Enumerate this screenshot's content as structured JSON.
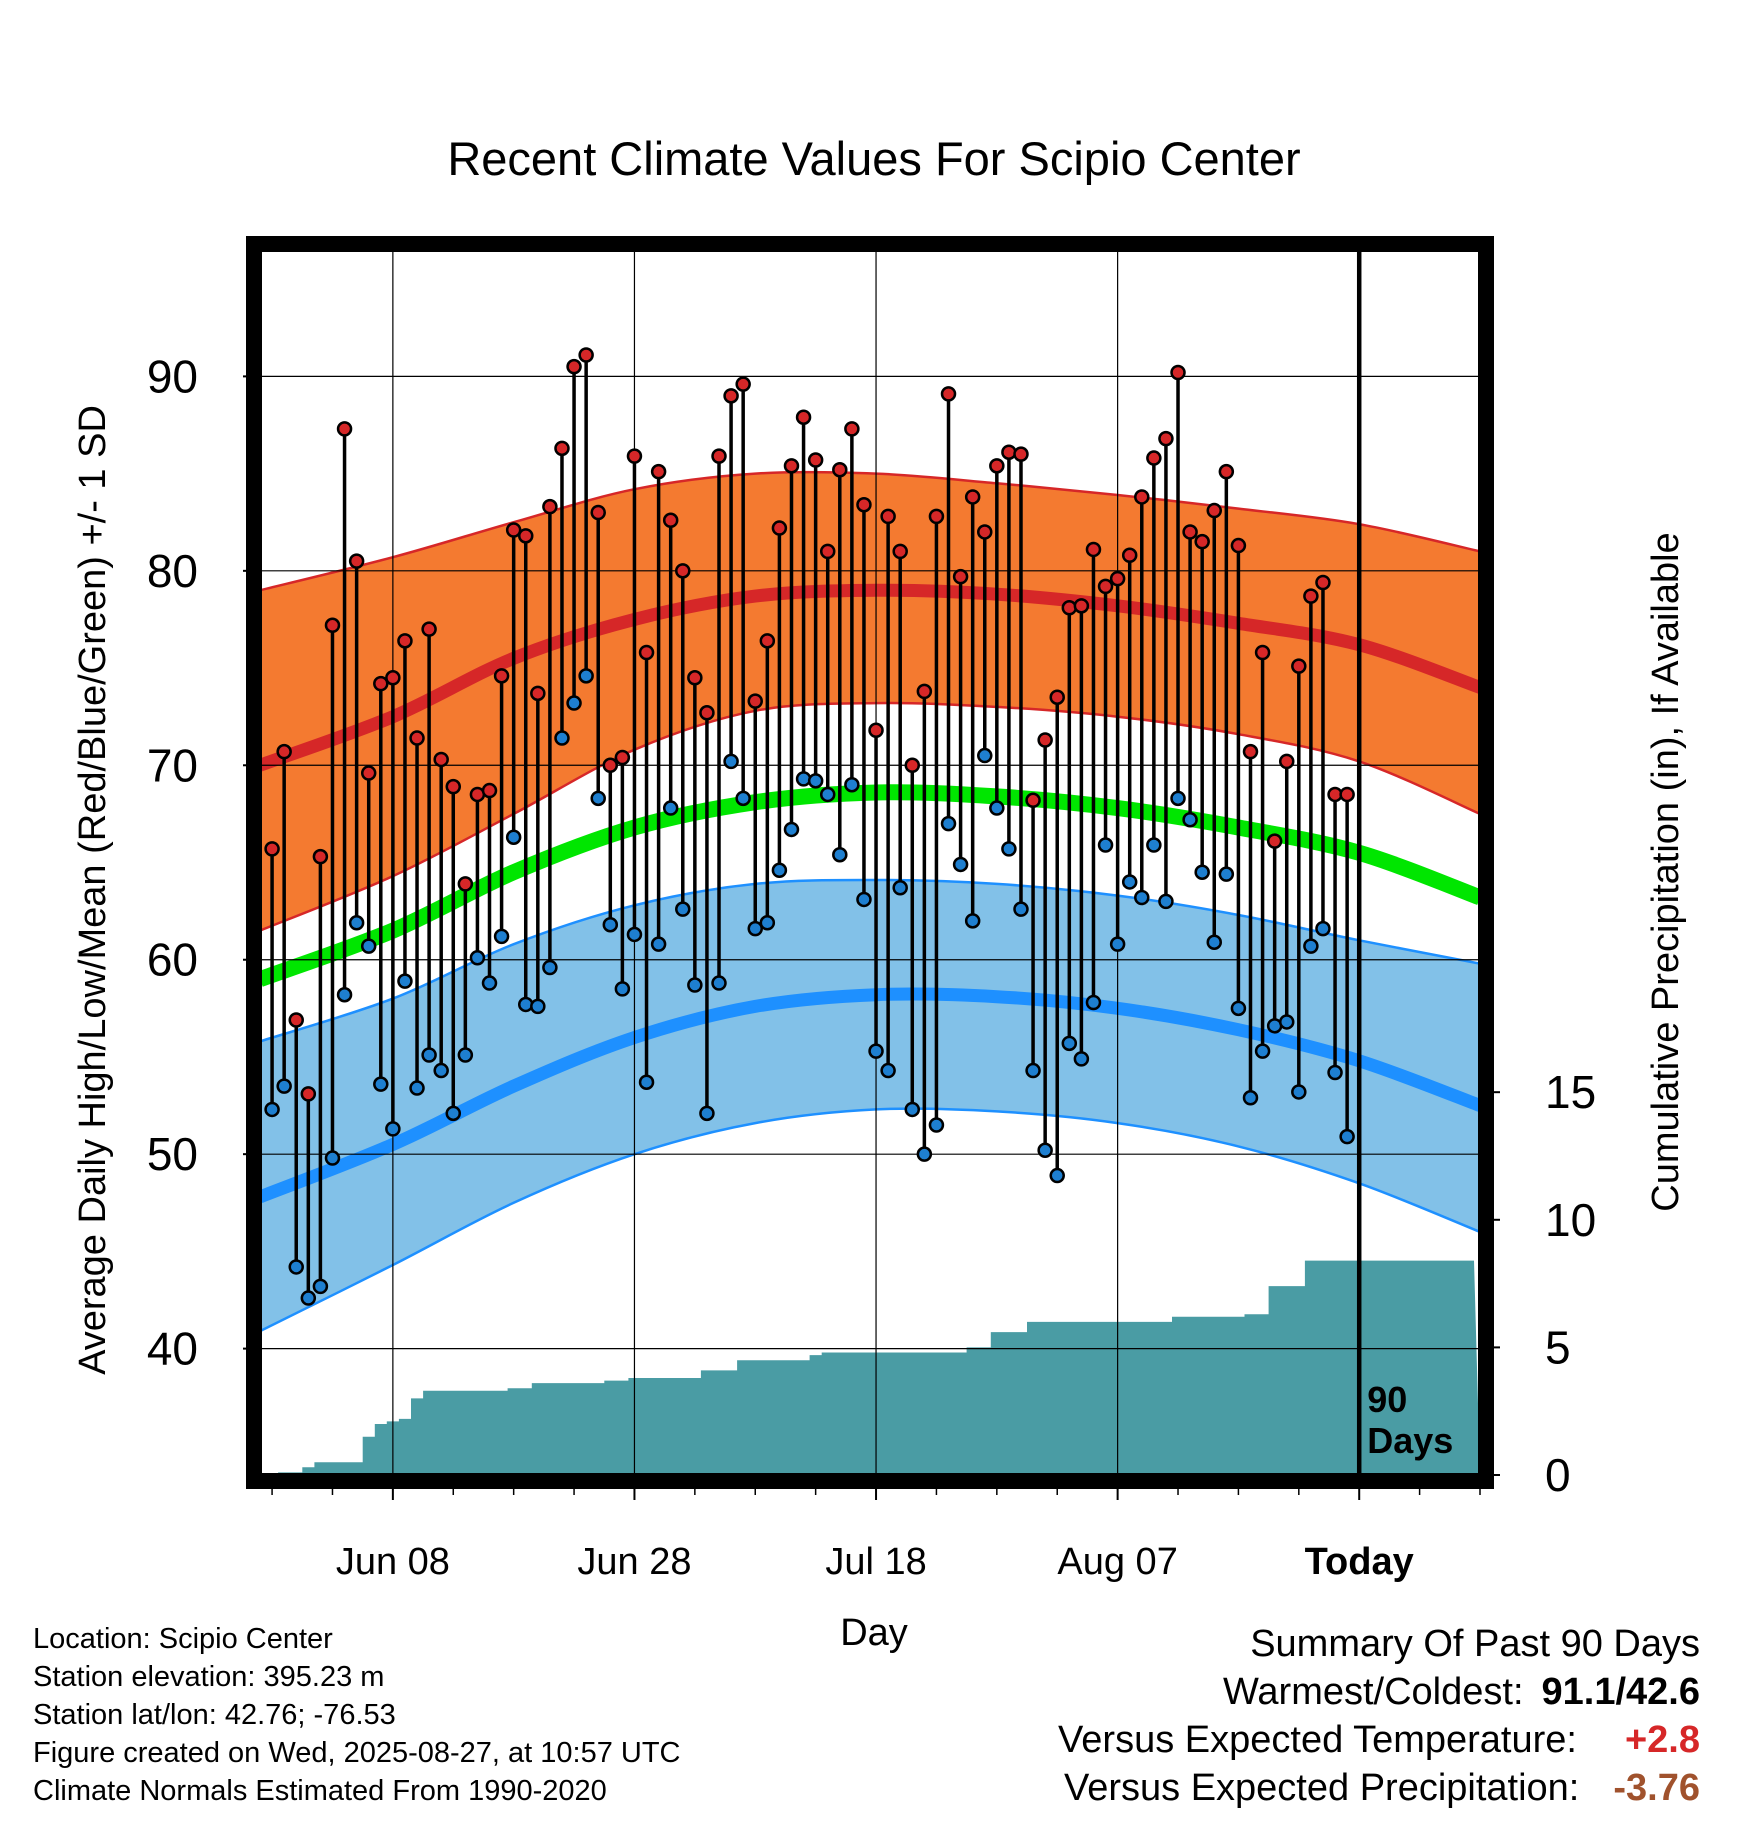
{
  "chart_data": {
    "type": "line",
    "title": "Recent Climate Values For Scipio Center",
    "xlabel": "Day",
    "ylabel": "Average Daily High/Low/Mean (Red/Blue/Green) +/- 1 SD",
    "y2label": "Cumulative Precipitation (in), If Available",
    "ylim": [
      33.5,
      96.5
    ],
    "y2lim": [
      0,
      48
    ],
    "yticks": [
      40,
      50,
      60,
      70,
      80,
      90
    ],
    "y2ticks": [
      0,
      5,
      10,
      15
    ],
    "x_tick_labels": [
      {
        "day": 10,
        "label": "Jun 08"
      },
      {
        "day": 30,
        "label": "Jun 28"
      },
      {
        "day": 50,
        "label": "Jul 18"
      },
      {
        "day": 70,
        "label": "Aug 07"
      },
      {
        "day": 90,
        "label": "Today"
      }
    ],
    "xlim": [
      -1,
      100
    ],
    "today_marker": {
      "day": 90,
      "label_line1": "90",
      "label_line2": "Days"
    },
    "grid": true,
    "normals": {
      "days": [
        -1,
        10,
        20,
        30,
        40,
        50,
        60,
        70,
        80,
        90,
        100
      ],
      "high_mean": [
        70.0,
        72.5,
        75.5,
        77.5,
        78.7,
        79.0,
        78.8,
        78.2,
        77.3,
        76.2,
        74.0
      ],
      "high_plus": [
        79.0,
        80.7,
        82.5,
        84.2,
        85.0,
        85.0,
        84.5,
        83.9,
        83.2,
        82.4,
        81.0
      ],
      "high_minus": [
        61.5,
        64.3,
        67.5,
        70.8,
        72.8,
        73.2,
        73.0,
        72.5,
        71.6,
        70.2,
        67.5
      ],
      "low_mean": [
        47.8,
        50.5,
        53.5,
        56.0,
        57.6,
        58.2,
        58.1,
        57.5,
        56.4,
        54.8,
        52.5
      ],
      "low_plus": [
        55.8,
        58.0,
        60.8,
        62.8,
        63.9,
        64.1,
        63.9,
        63.3,
        62.3,
        61.0,
        59.8
      ],
      "low_minus": [
        40.9,
        44.3,
        47.5,
        50.0,
        51.6,
        52.3,
        52.2,
        51.6,
        50.4,
        48.5,
        46.0
      ],
      "mean": [
        59.0,
        61.5,
        64.5,
        66.8,
        68.1,
        68.6,
        68.4,
        67.8,
        66.8,
        65.5,
        63.2
      ]
    },
    "series": [
      {
        "name": "High",
        "values": [
          65.7,
          70.7,
          56.9,
          53.1,
          65.3,
          77.2,
          87.3,
          80.5,
          69.6,
          74.2,
          74.5,
          76.4,
          71.4,
          77.0,
          70.3,
          68.9,
          63.9,
          68.5,
          68.7,
          74.6,
          82.1,
          81.8,
          73.7,
          83.3,
          86.3,
          90.5,
          91.1,
          83.0,
          70.0,
          70.4,
          85.9,
          75.8,
          85.1,
          82.6,
          80.0,
          74.5,
          72.7,
          85.9,
          89.0,
          89.6,
          73.3,
          76.4,
          82.2,
          85.4,
          87.9,
          85.7,
          81.0,
          85.2,
          87.3,
          83.4,
          71.8,
          82.8,
          81.0,
          70.0,
          73.8,
          82.8,
          89.1,
          79.7,
          83.8,
          82.0,
          85.4,
          86.1,
          86.0,
          68.2,
          71.3,
          73.5,
          78.1,
          78.2,
          81.1,
          79.2,
          79.6,
          80.8,
          83.8,
          85.8,
          86.8,
          90.2,
          82.0,
          81.5,
          83.1,
          85.1,
          81.3,
          70.7,
          75.8,
          66.1,
          70.2,
          75.1,
          78.7,
          79.4,
          68.5,
          68.5
        ]
      },
      {
        "name": "Low",
        "values": [
          52.3,
          53.5,
          44.2,
          42.6,
          43.2,
          49.8,
          58.2,
          61.9,
          60.7,
          53.6,
          51.3,
          58.9,
          53.4,
          55.1,
          54.3,
          52.1,
          55.1,
          60.1,
          58.8,
          61.2,
          66.3,
          57.7,
          57.6,
          59.6,
          71.4,
          73.2,
          74.6,
          68.3,
          61.8,
          58.5,
          61.3,
          53.7,
          60.8,
          67.8,
          62.6,
          58.7,
          52.1,
          58.8,
          70.2,
          68.3,
          61.6,
          61.9,
          64.6,
          66.7,
          69.3,
          69.2,
          68.5,
          65.4,
          69.0,
          63.1,
          55.3,
          54.3,
          63.7,
          52.3,
          50.0,
          51.5,
          67.0,
          64.9,
          62.0,
          70.5,
          67.8,
          65.7,
          62.6,
          54.3,
          50.2,
          48.9,
          55.7,
          54.9,
          57.8,
          65.9,
          60.8,
          64.0,
          63.2,
          65.9,
          63.0,
          68.3,
          67.2,
          64.5,
          60.9,
          64.4,
          57.5,
          52.9,
          55.3,
          56.6,
          56.8,
          53.2,
          60.7,
          61.6,
          54.2,
          50.9
        ]
      },
      {
        "name": "Precipitation",
        "days": [
          1,
          2,
          3,
          4,
          5,
          6,
          7,
          8,
          9,
          10,
          11,
          12,
          13,
          14,
          15,
          20,
          21,
          22,
          23,
          28,
          29,
          30,
          35,
          36,
          38,
          39,
          40,
          45,
          46,
          47,
          55,
          57,
          58,
          60,
          61,
          62,
          63,
          64,
          65,
          66,
          70,
          74,
          75,
          76,
          80,
          81,
          82,
          83,
          84,
          85,
          86,
          87,
          88,
          95
        ],
        "values": [
          0.1,
          0.1,
          0.3,
          0.5,
          0.5,
          0.5,
          0.5,
          1.5,
          2.0,
          2.1,
          2.2,
          3.0,
          3.3,
          3.3,
          3.3,
          3.4,
          3.4,
          3.6,
          3.6,
          3.7,
          3.7,
          3.8,
          3.8,
          4.1,
          4.1,
          4.5,
          4.5,
          4.7,
          4.8,
          4.8,
          4.8,
          4.8,
          5.0,
          5.6,
          5.6,
          5.6,
          6.0,
          6.0,
          6.0,
          6.0,
          6.0,
          6.0,
          6.2,
          6.2,
          6.2,
          6.3,
          6.3,
          7.4,
          7.4,
          7.4,
          8.4,
          8.4,
          8.4,
          8.4
        ]
      }
    ]
  },
  "info": {
    "location": "Location: Scipio Center",
    "elevation": "Station elevation: 395.23 m",
    "latlon": "Station lat/lon: 42.76; -76.53",
    "created": "Figure created on Wed, 2025-08-27, at 10:57 UTC",
    "normals": "Climate Normals Estimated From 1990-2020"
  },
  "summary": {
    "title": "Summary Of Past 90 Days",
    "warmest_label": "Warmest/Coldest:",
    "warmest_value": "91.1/42.6",
    "temp_label": "Versus Expected Temperature:",
    "temp_value": "+2.8",
    "precip_label": "Versus Expected Precipitation:",
    "precip_value": "-3.76"
  },
  "colors": {
    "high_band": "#f47a30",
    "high_line": "#d62728",
    "low_band": "#82c1e8",
    "low_line": "#1e90ff",
    "mean_line": "#00e600",
    "precip_fill": "#4a9ca4",
    "high_dot": "#d62728",
    "low_dot": "#1e7fd0"
  }
}
